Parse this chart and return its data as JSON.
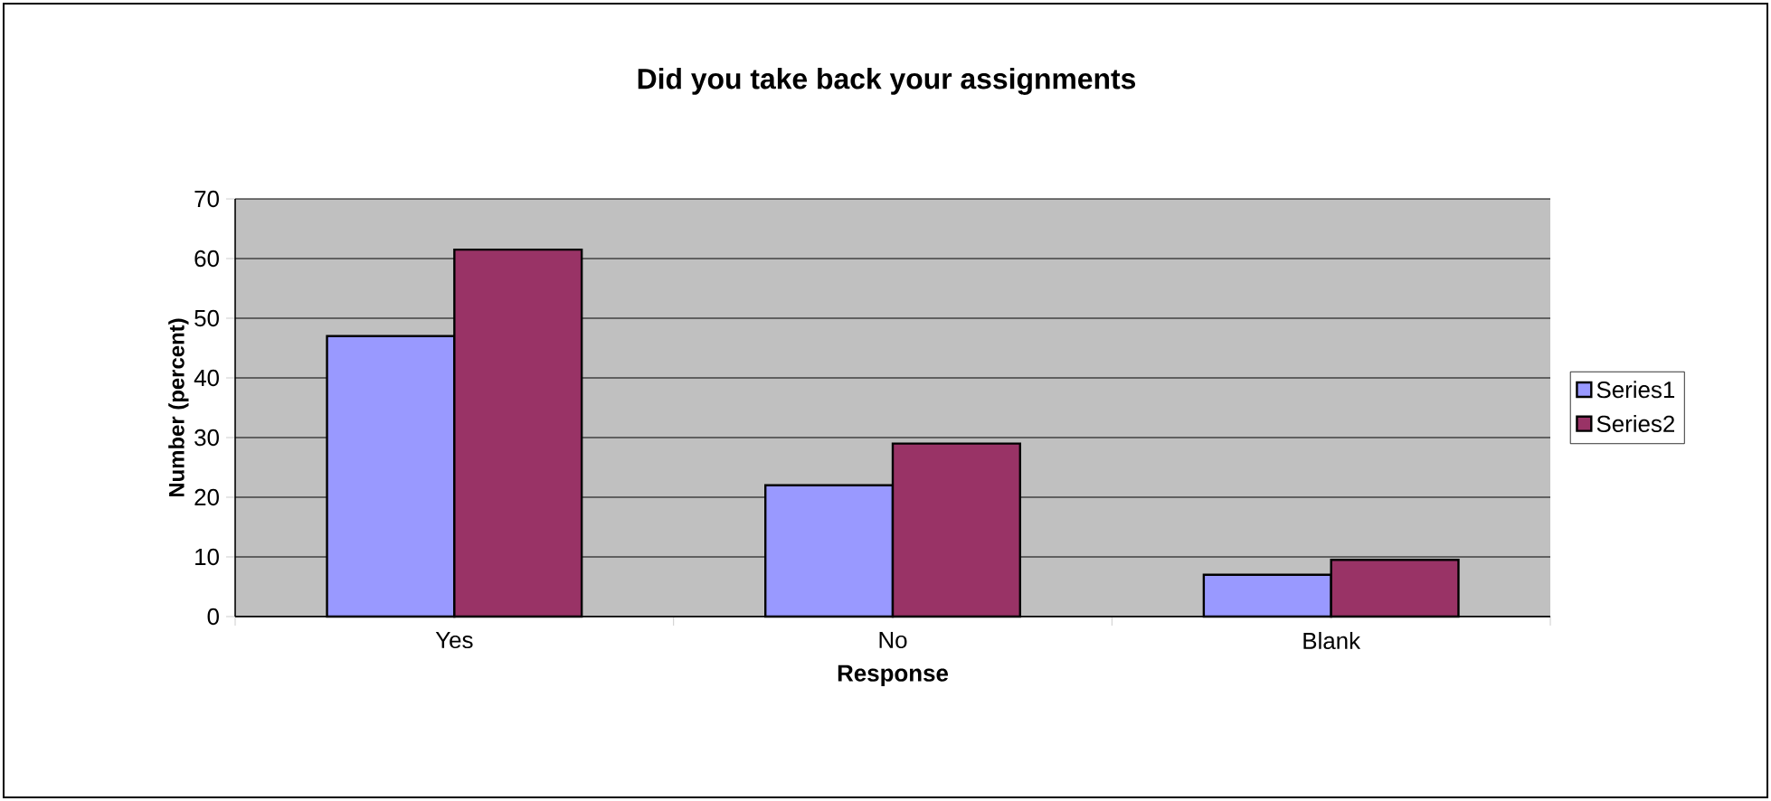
{
  "chart_data": {
    "type": "bar",
    "title": "Did you take back your assignments",
    "xlabel": "Response",
    "ylabel": "Number (percent)",
    "categories": [
      "Yes",
      "No",
      "Blank"
    ],
    "series": [
      {
        "name": "Series1",
        "color": "#9999ff",
        "values": [
          47,
          22,
          7
        ]
      },
      {
        "name": "Series2",
        "color": "#993366",
        "values": [
          61.5,
          29,
          9.5
        ]
      }
    ],
    "ylim": [
      0,
      70
    ],
    "yticks": [
      0,
      10,
      20,
      30,
      40,
      50,
      60,
      70
    ],
    "grid": "y",
    "legend": "right"
  }
}
